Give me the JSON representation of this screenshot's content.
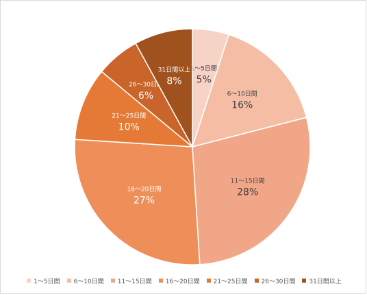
{
  "chart_data": {
    "type": "pie",
    "legend_position": "bottom",
    "colors": [
      "#f7d3c6",
      "#f5bea4",
      "#f2a688",
      "#ee8f5a",
      "#e47a35",
      "#c9642a",
      "#a0521e"
    ],
    "slices": [
      {
        "label": "1～5日間",
        "value": 5,
        "pct_label": "5%"
      },
      {
        "label": "6～10日間",
        "value": 16,
        "pct_label": "16%"
      },
      {
        "label": "11～15日間",
        "value": 28,
        "pct_label": "28%"
      },
      {
        "label": "16～20日間",
        "value": 27,
        "pct_label": "27%"
      },
      {
        "label": "21～25日間",
        "value": 10,
        "pct_label": "10%"
      },
      {
        "label": "26～30日間",
        "value": 6,
        "pct_label": "6%"
      },
      {
        "label": "31日間以上",
        "value": 8,
        "pct_label": "8%"
      }
    ]
  }
}
